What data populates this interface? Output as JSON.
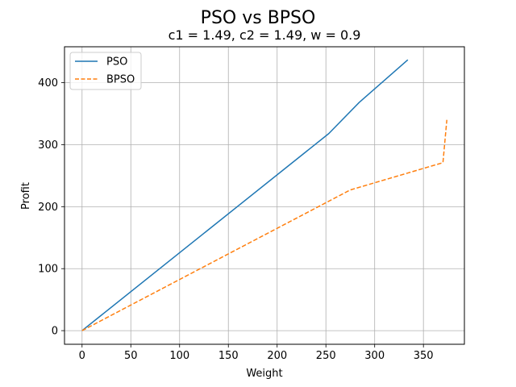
{
  "chart_data": {
    "type": "line",
    "title": "PSO vs BPSO",
    "subtitle": "c1 = 1.49, c2 = 1.49, w = 0.9",
    "xlabel": "Weight",
    "ylabel": "Profit",
    "xlim": [
      -18,
      392
    ],
    "ylim": [
      -22,
      458
    ],
    "xticks": [
      0,
      50,
      100,
      150,
      200,
      250,
      300,
      350
    ],
    "yticks": [
      0,
      100,
      200,
      300,
      400
    ],
    "grid": true,
    "legend_position": "top-left",
    "series": [
      {
        "name": "PSO",
        "color": "#1f77b4",
        "style": "solid",
        "x": [
          0,
          253,
          284,
          334
        ],
        "y": [
          0,
          318,
          368,
          437
        ]
      },
      {
        "name": "BPSO",
        "color": "#ff7f0e",
        "style": "dashed",
        "x": [
          0,
          275,
          370,
          374
        ],
        "y": [
          0,
          227,
          271,
          340
        ]
      }
    ]
  }
}
